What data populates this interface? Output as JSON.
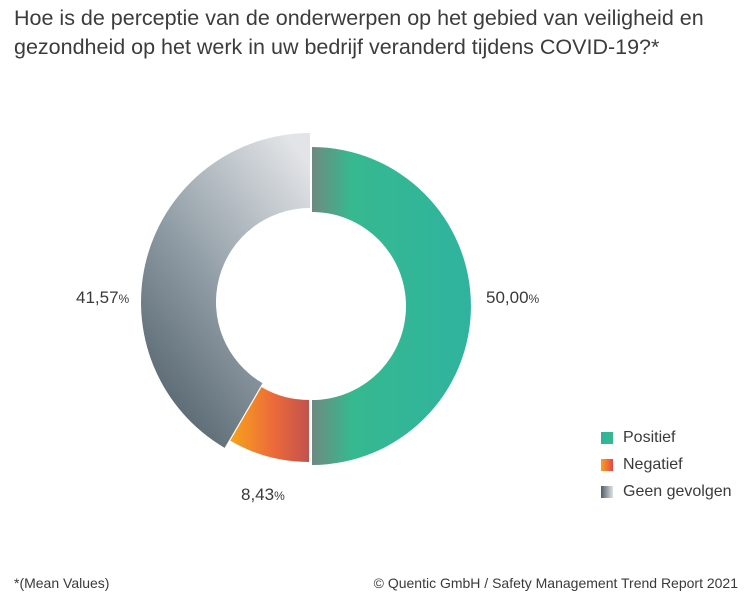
{
  "title": "Hoe is de perceptie van de onderwerpen op het gebied van veiligheid en gezondheid op het werk in uw bedrijf veranderd tijdens COVID-19?*",
  "footnote": "*(Mean Values)",
  "credit": "© Quentic GmbH / Safety Management Trend Report 2021",
  "chart_data": {
    "type": "pie",
    "donut": true,
    "title": "Hoe is de perceptie van de onderwerpen op het gebied van veiligheid en gezondheid op het werk in uw bedrijf veranderd tijdens COVID-19?*",
    "legend_position": "bottom-right",
    "slices": [
      {
        "name": "Positief",
        "value": 50.0,
        "label": "50,00",
        "unit": "%",
        "color_start": "#6e8a80",
        "color_end": "#2fb39a"
      },
      {
        "name": "Negatief",
        "value": 8.43,
        "label": "8,43",
        "unit": "%",
        "color_start": "#f5a020",
        "color_end": "#e8444a"
      },
      {
        "name": "Geen gevolgen",
        "value": 41.57,
        "label": "41,57",
        "unit": "%",
        "color_start": "#56656f",
        "color_end": "#dfe1e4"
      }
    ]
  }
}
